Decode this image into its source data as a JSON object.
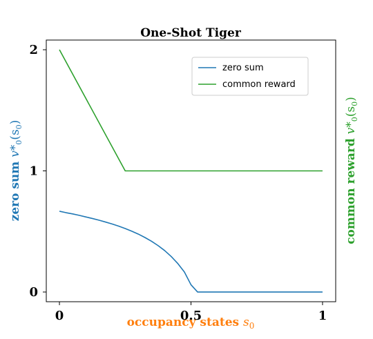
{
  "chart_data": {
    "type": "line",
    "title": "One-Shot Tiger",
    "xlabel": "occupancy states",
    "xlabel_symbol": "s",
    "xlabel_sub": "0",
    "ylabel_left": "zero sum",
    "ylabel_left_symbol": "v*",
    "ylabel_left_sub": "0",
    "ylabel_left_arg": "(s",
    "ylabel_left_arg_sub": "0",
    "ylabel_left_close": ")",
    "ylabel_right": "common reward",
    "ylabel_right_symbol": "v*",
    "ylabel_right_sub": "0",
    "ylabel_right_arg": "(s",
    "ylabel_right_arg_sub": "0",
    "ylabel_right_close": ")",
    "xlim": [
      -0.05,
      1.05
    ],
    "ylim": [
      -0.08,
      2.08
    ],
    "xticks": [
      0,
      0.5,
      1
    ],
    "xtick_labels": [
      "0",
      "0.5",
      "1"
    ],
    "yticks": [
      0,
      1,
      2
    ],
    "ytick_labels": [
      "0",
      "1",
      "2"
    ],
    "grid": false,
    "legend_position": "top-right",
    "series": [
      {
        "name": "zero sum",
        "color": "#1f77b4",
        "x": [
          0,
          0.025,
          0.05,
          0.075,
          0.1,
          0.125,
          0.15,
          0.175,
          0.2,
          0.225,
          0.25,
          0.275,
          0.3,
          0.325,
          0.35,
          0.375,
          0.4,
          0.425,
          0.45,
          0.475,
          0.5,
          0.525,
          0.55,
          0.6,
          0.7,
          0.8,
          0.9,
          1.0
        ],
        "y": [
          0.667,
          0.655,
          0.645,
          0.633,
          0.62,
          0.607,
          0.593,
          0.578,
          0.562,
          0.544,
          0.524,
          0.502,
          0.478,
          0.45,
          0.419,
          0.383,
          0.342,
          0.293,
          0.235,
          0.165,
          0.06,
          0,
          0,
          0,
          0,
          0,
          0,
          0
        ]
      },
      {
        "name": "common reward",
        "color": "#2ca02c",
        "x": [
          0,
          0.25,
          0.5,
          0.75,
          1.0
        ],
        "y": [
          2,
          1,
          1,
          1,
          1
        ]
      }
    ]
  }
}
